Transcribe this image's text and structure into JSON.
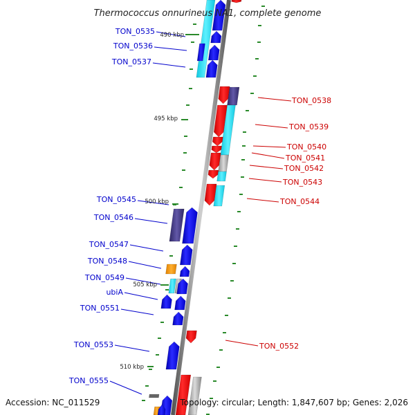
{
  "title": "Thermococcus onnurineus NA1, complete genome",
  "footer": {
    "accession": "Accession: NC_011529",
    "summary": "Topology: circular; Length: 1,847,607 bp; Genes: 2,026"
  },
  "colors": {
    "forward_label": "#0000cc",
    "reverse_label": "#cc0000",
    "forward_gene": "#1a1aff",
    "reverse_gene": "#ff1a1a",
    "cyan_track": "#22e0f0",
    "slate_track": "#4b3f8a",
    "orange_track": "#ff9900",
    "grey_track": "#aaaaaa",
    "backbone": "#888888",
    "tick": "#2a8a2a"
  },
  "scale_ticks": [
    "490 kbp",
    "495 kbp",
    "500 kbp",
    "505 kbp",
    "510 kbp"
  ],
  "forward_genes": [
    "TON_0535",
    "TON_0536",
    "TON_0537",
    "TON_0545",
    "TON_0546",
    "TON_0547",
    "TON_0548",
    "TON_0549",
    "ubiA",
    "TON_0551",
    "TON_0553",
    "TON_0555"
  ],
  "reverse_genes": [
    "TON_0538",
    "TON_0539",
    "TON_0540",
    "TON_0541",
    "TON_0542",
    "TON_0543",
    "TON_0544",
    "TON_0552"
  ]
}
